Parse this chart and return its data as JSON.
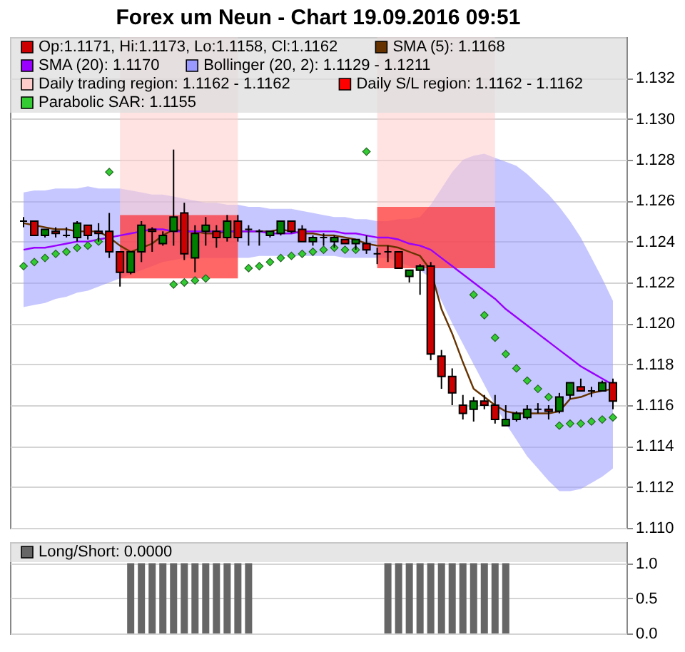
{
  "chart_data": [
    {
      "type": "candlestick",
      "title": "Forex um Neun - Chart 19.09.2016 09:51",
      "categories": [
        null,
        null,
        null,
        null,
        null,
        null,
        null,
        null,
        null,
        null,
        null,
        null,
        null,
        null,
        null,
        null,
        null,
        null,
        null,
        null,
        null,
        null,
        null,
        null,
        null,
        null,
        null,
        null,
        null,
        null,
        null,
        null,
        null,
        null,
        null,
        null,
        null,
        null,
        null,
        null,
        null,
        null,
        null,
        null,
        null,
        null,
        null,
        null,
        null,
        null,
        null,
        null,
        null,
        null,
        null,
        null
      ],
      "ylim": [
        1.11,
        1.134
      ],
      "yticks": [
        {
          "value": 1.11,
          "label": "1.110"
        },
        {
          "value": 1.112,
          "label": "1.112"
        },
        {
          "value": 1.114,
          "label": "1.114"
        },
        {
          "value": 1.116,
          "label": "1.116"
        },
        {
          "value": 1.118,
          "label": "1.118"
        },
        {
          "value": 1.12,
          "label": "1.120"
        },
        {
          "value": 1.122,
          "label": "1.122"
        },
        {
          "value": 1.124,
          "label": "1.124"
        },
        {
          "value": 1.126,
          "label": "1.126"
        },
        {
          "value": 1.128,
          "label": "1.128"
        },
        {
          "value": 1.13,
          "label": "1.130"
        },
        {
          "value": 1.132,
          "label": "1.132"
        }
      ],
      "grid": "y",
      "legend": "top left",
      "tick_labels": "y",
      "series": [
        {
          "name": "Op:1.1171, Hi:1.1173, Lo:1.1158, Cl:1.1162",
          "color": "#cc0000",
          "ohlc": [
            [
              1.125,
              1.1252,
              1.1247,
              1.125
            ],
            [
              1.125,
              1.125,
              1.1243,
              1.1243
            ],
            [
              1.1243,
              1.1246,
              1.1242,
              1.1246
            ],
            [
              1.1245,
              1.1247,
              1.1242,
              1.1244
            ],
            [
              1.1243,
              1.1247,
              1.1242,
              1.1243
            ],
            [
              1.1242,
              1.125,
              1.124,
              1.1249
            ],
            [
              1.1248,
              1.1248,
              1.1241,
              1.1243
            ],
            [
              1.1245,
              1.1249,
              1.124,
              1.1244
            ],
            [
              1.1245,
              1.1254,
              1.1232,
              1.1235
            ],
            [
              1.1235,
              1.1235,
              1.1218,
              1.1225
            ],
            [
              1.1225,
              1.1235,
              1.1224,
              1.1235
            ],
            [
              1.1235,
              1.125,
              1.123,
              1.1248
            ],
            [
              1.1246,
              1.1247,
              1.1235,
              1.1245
            ],
            [
              1.1239,
              1.1245,
              1.1238,
              1.1243
            ],
            [
              1.1245,
              1.1285,
              1.1238,
              1.1252
            ],
            [
              1.1254,
              1.1259,
              1.1231,
              1.1234
            ],
            [
              1.1232,
              1.1248,
              1.1225,
              1.1244
            ],
            [
              1.1245,
              1.1252,
              1.1238,
              1.1248
            ],
            [
              1.1245,
              1.1248,
              1.1237,
              1.1242
            ],
            [
              1.1242,
              1.1253,
              1.124,
              1.125
            ],
            [
              1.125,
              1.1253,
              1.124,
              1.1242
            ],
            [
              1.1246,
              1.1248,
              1.1238,
              1.1246
            ],
            [
              1.1245,
              1.1246,
              1.1238,
              1.1245
            ],
            [
              1.1243,
              1.1245,
              1.1242,
              1.1245
            ],
            [
              1.1244,
              1.125,
              1.1243,
              1.125
            ],
            [
              1.125,
              1.125,
              1.1244,
              1.1245
            ],
            [
              1.1246,
              1.1248,
              1.124,
              1.124
            ],
            [
              1.124,
              1.1243,
              1.1238,
              1.1242
            ],
            [
              1.1242,
              1.1244,
              1.1238,
              1.1242
            ],
            [
              1.124,
              1.1243,
              1.1237,
              1.1242
            ],
            [
              1.1241,
              1.1241,
              1.1239,
              1.1239
            ],
            [
              1.1239,
              1.1241,
              1.1236,
              1.1241
            ],
            [
              1.1239,
              1.1243,
              1.1234,
              1.1236
            ],
            [
              1.1234,
              1.1237,
              1.1229,
              1.1234
            ],
            [
              1.1235,
              1.1238,
              1.123,
              1.1235
            ],
            [
              1.1235,
              1.1235,
              1.1227,
              1.1227
            ],
            [
              1.1223,
              1.1226,
              1.122,
              1.1226
            ],
            [
              1.1226,
              1.1229,
              1.1214,
              1.1228
            ],
            [
              1.1228,
              1.123,
              1.1182,
              1.1185
            ],
            [
              1.1184,
              1.1187,
              1.1168,
              1.1174
            ],
            [
              1.1174,
              1.1178,
              1.116,
              1.1166
            ],
            [
              1.116,
              1.1165,
              1.1153,
              1.1156
            ],
            [
              1.1158,
              1.1164,
              1.1152,
              1.1162
            ],
            [
              1.1162,
              1.1165,
              1.1158,
              1.116
            ],
            [
              1.116,
              1.1165,
              1.1151,
              1.1153
            ],
            [
              1.115,
              1.116,
              1.115,
              1.1153
            ],
            [
              1.1153,
              1.1157,
              1.1152,
              1.1156
            ],
            [
              1.1154,
              1.116,
              1.1153,
              1.1158
            ],
            [
              1.1158,
              1.1161,
              1.1156,
              1.1158
            ],
            [
              1.1158,
              1.116,
              1.1153,
              1.1157
            ],
            [
              1.1157,
              1.1166,
              1.1156,
              1.1164
            ],
            [
              1.1165,
              1.1171,
              1.1163,
              1.1171
            ],
            [
              1.1169,
              1.1173,
              1.1167,
              1.1167
            ],
            [
              1.1167,
              1.1169,
              1.1164,
              1.1167
            ],
            [
              1.1167,
              1.1172,
              1.1167,
              1.1171
            ],
            [
              1.1171,
              1.1173,
              1.1158,
              1.1162
            ]
          ],
          "colors": [
            "#000000",
            "#cc0000",
            "#008000",
            "#cc0000",
            "#000000",
            "#008000",
            "#cc0000",
            "#cc0000",
            "#cc0000",
            "#cc0000",
            "#008000",
            "#008000",
            "#cc0000",
            "#008000",
            "#008000",
            "#cc0000",
            "#008000",
            "#008000",
            "#cc0000",
            "#008000",
            "#cc0000",
            "#000000",
            "#000000",
            "#008000",
            "#008000",
            "#cc0000",
            "#cc0000",
            "#008000",
            "#000000",
            "#008000",
            "#cc0000",
            "#008000",
            "#cc0000",
            "#000000",
            "#000000",
            "#cc0000",
            "#008000",
            "#008000",
            "#cc0000",
            "#cc0000",
            "#cc0000",
            "#cc0000",
            "#008000",
            "#cc0000",
            "#cc0000",
            "#008000",
            "#008000",
            "#008000",
            "#000000",
            "#cc0000",
            "#008000",
            "#008000",
            "#cc0000",
            "#000000",
            "#008000",
            "#cc0000"
          ]
        },
        {
          "name": "SMA (5): 1.1168",
          "type": "line",
          "color": "#663300",
          "values": [
            1.1249,
            1.1248,
            1.1247,
            1.1246,
            1.1246,
            1.1245,
            1.1245,
            1.1245,
            1.1242,
            1.1238,
            1.1235,
            1.1237,
            1.1239,
            1.1243,
            1.1246,
            1.1245,
            1.1245,
            1.1244,
            1.1244,
            1.1245,
            1.1245,
            1.1245,
            1.1245,
            1.1245,
            1.1246,
            1.1245,
            1.1244,
            1.1244,
            1.1243,
            1.1243,
            1.1242,
            1.1241,
            1.1239,
            1.1238,
            1.1238,
            1.1237,
            1.1235,
            1.1233,
            1.1226,
            1.1207,
            1.1195,
            1.1181,
            1.1168,
            1.1164,
            1.116,
            1.1157,
            1.1156,
            1.1156,
            1.1156,
            1.1156,
            1.1157,
            1.1163,
            1.1164,
            1.1166,
            1.1167,
            1.1168
          ]
        },
        {
          "name": "SMA (20): 1.1170",
          "type": "line",
          "color": "#9900ff",
          "values": [
            1.1236,
            1.1237,
            1.1237,
            1.1238,
            1.1239,
            1.124,
            1.124,
            1.1241,
            1.1242,
            1.1243,
            1.1244,
            1.1245,
            1.1246,
            1.1246,
            1.1245,
            1.1245,
            1.1245,
            1.1245,
            1.1245,
            1.1245,
            1.1245,
            1.1245,
            1.1245,
            1.1244,
            1.1244,
            1.1244,
            1.1245,
            1.1245,
            1.1245,
            1.1245,
            1.1244,
            1.1244,
            1.1243,
            1.1242,
            1.1242,
            1.1241,
            1.1239,
            1.1238,
            1.1236,
            1.1232,
            1.1228,
            1.1224,
            1.122,
            1.1216,
            1.1212,
            1.1207,
            1.1203,
            1.1199,
            1.1195,
            1.1191,
            1.1187,
            1.1183,
            1.1179,
            1.1176,
            1.1173,
            1.117
          ]
        },
        {
          "name": "Bollinger (20, 2): 1.1129 - 1.1211",
          "type": "area",
          "color": "#9999ff",
          "lower": [
            1.1208,
            1.1209,
            1.121,
            1.1212,
            1.1213,
            1.1215,
            1.1216,
            1.1218,
            1.122,
            1.1222,
            1.1224,
            1.1226,
            1.1228,
            1.123,
            1.1231,
            1.1232,
            1.1232,
            1.1232,
            1.1232,
            1.1232,
            1.1232,
            1.1232,
            1.1233,
            1.1233,
            1.1233,
            1.1233,
            1.1233,
            1.1233,
            1.1233,
            1.1233,
            1.1232,
            1.1232,
            1.1232,
            1.1232,
            1.1232,
            1.123,
            1.1228,
            1.1226,
            1.1222,
            1.1211,
            1.12,
            1.119,
            1.118,
            1.117,
            1.116,
            1.1151,
            1.1143,
            1.1135,
            1.1129,
            1.1123,
            1.1118,
            1.1118,
            1.1119,
            1.1122,
            1.1125,
            1.1129
          ],
          "values": [
            null,
            null,
            null,
            null,
            null,
            null,
            null,
            null,
            null,
            null,
            null,
            null,
            null,
            null,
            null,
            null,
            null,
            null,
            null,
            null,
            null,
            null,
            null,
            null,
            null,
            null,
            null,
            null,
            null,
            null,
            null,
            null,
            null,
            null,
            null,
            null,
            null,
            null,
            null,
            null,
            null,
            null,
            null,
            null,
            null,
            null,
            null,
            null,
            null,
            null,
            null,
            null,
            null,
            null,
            null,
            null
          ],
          "upper": [
            1.1264,
            1.1265,
            1.1265,
            1.1266,
            1.1266,
            1.1266,
            1.1267,
            1.1266,
            1.1266,
            1.1266,
            1.1265,
            1.1264,
            1.1263,
            1.1263,
            1.1262,
            1.1261,
            1.126,
            1.1259,
            1.1259,
            1.1258,
            1.1258,
            1.1257,
            1.1257,
            1.1256,
            1.1256,
            1.1256,
            1.1255,
            1.1254,
            1.1253,
            1.1252,
            1.1252,
            1.1251,
            1.1251,
            1.125,
            1.125,
            1.1251,
            1.1251,
            1.1252,
            1.1258,
            1.1266,
            1.1274,
            1.128,
            1.1282,
            1.1283,
            1.1281,
            1.1279,
            1.1277,
            1.1273,
            1.1268,
            1.1263,
            1.1257,
            1.125,
            1.1242,
            1.1232,
            1.1222,
            1.1211
          ]
        },
        {
          "name": "Daily trading region: 1.1162 - 1.1162",
          "type": "area",
          "color": "#ffcccc",
          "lower": [
            null,
            null,
            null,
            null,
            null,
            null,
            null,
            null,
            null,
            1.1222,
            1.1222,
            1.1222,
            1.1222,
            1.1222,
            1.1222,
            1.1222,
            1.1222,
            1.1222,
            1.1222,
            1.1222,
            1.1222,
            null,
            null,
            null,
            null,
            null,
            null,
            null,
            null,
            null,
            null,
            null,
            null,
            1.1227,
            1.1227,
            1.1227,
            1.1227,
            1.1227,
            1.1227,
            1.1227,
            1.1227,
            1.1227,
            1.1227,
            1.1227,
            1.1227,
            null,
            null,
            null,
            null,
            null,
            null,
            null,
            null,
            null,
            null,
            null
          ],
          "values": [
            null,
            null,
            null,
            null,
            null,
            null,
            null,
            null,
            null,
            null,
            null,
            null,
            null,
            null,
            null,
            null,
            null,
            null,
            null,
            null,
            null,
            null,
            null,
            null,
            null,
            null,
            null,
            null,
            null,
            null,
            null,
            null,
            null,
            null,
            null,
            null,
            null,
            null,
            null,
            null,
            null,
            null,
            null,
            null,
            null,
            null,
            null,
            null,
            null,
            null,
            null,
            null,
            null,
            null,
            null,
            null
          ],
          "upper": [
            null,
            null,
            null,
            null,
            null,
            null,
            null,
            null,
            null,
            1.134,
            1.134,
            1.134,
            1.134,
            1.134,
            1.134,
            1.134,
            1.134,
            1.134,
            1.134,
            1.134,
            1.134,
            null,
            null,
            null,
            null,
            null,
            null,
            null,
            null,
            null,
            null,
            null,
            null,
            1.134,
            1.134,
            1.134,
            1.134,
            1.134,
            1.134,
            1.134,
            1.134,
            1.134,
            1.134,
            1.134,
            1.134,
            null,
            null,
            null,
            null,
            null,
            null,
            null,
            null,
            null,
            null,
            null
          ]
        },
        {
          "name": "Daily S/L region: 1.1162 - 1.1162",
          "type": "area",
          "color": "#ff0000",
          "lower": [
            null,
            null,
            null,
            null,
            null,
            null,
            null,
            null,
            null,
            1.1222,
            1.1222,
            1.1222,
            1.1222,
            1.1222,
            1.1222,
            1.1222,
            1.1222,
            1.1222,
            1.1222,
            1.1222,
            1.1222,
            null,
            null,
            null,
            null,
            null,
            null,
            null,
            null,
            null,
            null,
            null,
            null,
            1.1227,
            1.1227,
            1.1227,
            1.1227,
            1.1227,
            1.1227,
            1.1227,
            1.1227,
            1.1227,
            1.1227,
            1.1227,
            1.1227,
            null,
            null,
            null,
            null,
            null,
            null,
            null,
            null,
            null,
            null,
            null
          ],
          "values": [
            null,
            null,
            null,
            null,
            null,
            null,
            null,
            null,
            null,
            null,
            null,
            null,
            null,
            null,
            null,
            null,
            null,
            null,
            null,
            null,
            null,
            null,
            null,
            null,
            null,
            null,
            null,
            null,
            null,
            null,
            null,
            null,
            null,
            null,
            null,
            null,
            null,
            null,
            null,
            null,
            null,
            null,
            null,
            null,
            null,
            null,
            null,
            null,
            null,
            null,
            null,
            null,
            null,
            null,
            null,
            null
          ],
          "upper": [
            null,
            null,
            null,
            null,
            null,
            null,
            null,
            null,
            null,
            1.1253,
            1.1253,
            1.1253,
            1.1253,
            1.1253,
            1.1253,
            1.1253,
            1.1253,
            1.1253,
            1.1253,
            1.1253,
            1.1253,
            null,
            null,
            null,
            null,
            null,
            null,
            null,
            null,
            null,
            null,
            null,
            null,
            1.1257,
            1.1257,
            1.1257,
            1.1257,
            1.1257,
            1.1257,
            1.1257,
            1.1257,
            1.1257,
            1.1257,
            1.1257,
            1.1257,
            null,
            null,
            null,
            null,
            null,
            null,
            null,
            null,
            null,
            null,
            null
          ]
        },
        {
          "name": "Parabolic SAR: 1.1155",
          "type": "scatter",
          "color": "#33cc33",
          "marker": "diamond",
          "values": [
            1.1228,
            1.123,
            1.1232,
            1.1234,
            1.1235,
            1.1237,
            1.1238,
            1.124,
            1.1274,
            null,
            null,
            null,
            null,
            null,
            1.1219,
            1.122,
            1.1221,
            1.1222,
            null,
            null,
            null,
            1.1227,
            1.1228,
            1.123,
            1.1232,
            1.1233,
            1.1234,
            1.1235,
            1.1236,
            1.1237,
            1.1236,
            1.1236,
            1.1284,
            null,
            null,
            null,
            null,
            null,
            null,
            null,
            null,
            null,
            1.1214,
            1.1204,
            1.1193,
            1.1185,
            1.1178,
            1.1172,
            1.1168,
            1.1164,
            1.115,
            1.1151,
            1.1151,
            1.1152,
            1.1153,
            1.1154
          ]
        }
      ]
    },
    {
      "type": "bar",
      "categories": [
        null,
        null,
        null,
        null,
        null,
        null,
        null,
        null,
        null,
        null,
        null,
        null,
        null,
        null,
        null,
        null,
        null,
        null,
        null,
        null,
        null,
        null,
        null,
        null,
        null,
        null,
        null,
        null,
        null,
        null,
        null,
        null,
        null,
        null,
        null,
        null,
        null,
        null,
        null,
        null,
        null,
        null,
        null,
        null,
        null,
        null,
        null,
        null,
        null,
        null,
        null,
        null,
        null,
        null,
        null,
        null
      ],
      "ylim": [
        0,
        1.3
      ],
      "yticks": [
        {
          "value": 0,
          "label": "0.0"
        },
        {
          "value": 0.5,
          "label": "0.5"
        },
        {
          "value": 1,
          "label": "1.0"
        }
      ],
      "grid": "y",
      "legend": "top left",
      "tick_labels": "y",
      "series": [
        {
          "name": "Long/Short: 0.0000",
          "color": "#666666",
          "values": [
            0,
            0,
            0,
            0,
            0,
            0,
            0,
            0,
            0,
            0,
            1,
            1,
            1,
            1,
            1,
            1,
            1,
            1,
            1,
            1,
            1,
            1,
            0,
            0,
            0,
            0,
            0,
            0,
            0,
            0,
            0,
            0,
            0,
            0,
            1,
            1,
            1,
            1,
            1,
            1,
            1,
            1,
            1,
            1,
            1,
            1,
            0,
            0,
            0,
            0,
            0,
            0,
            0,
            0,
            0,
            0
          ]
        }
      ]
    }
  ]
}
